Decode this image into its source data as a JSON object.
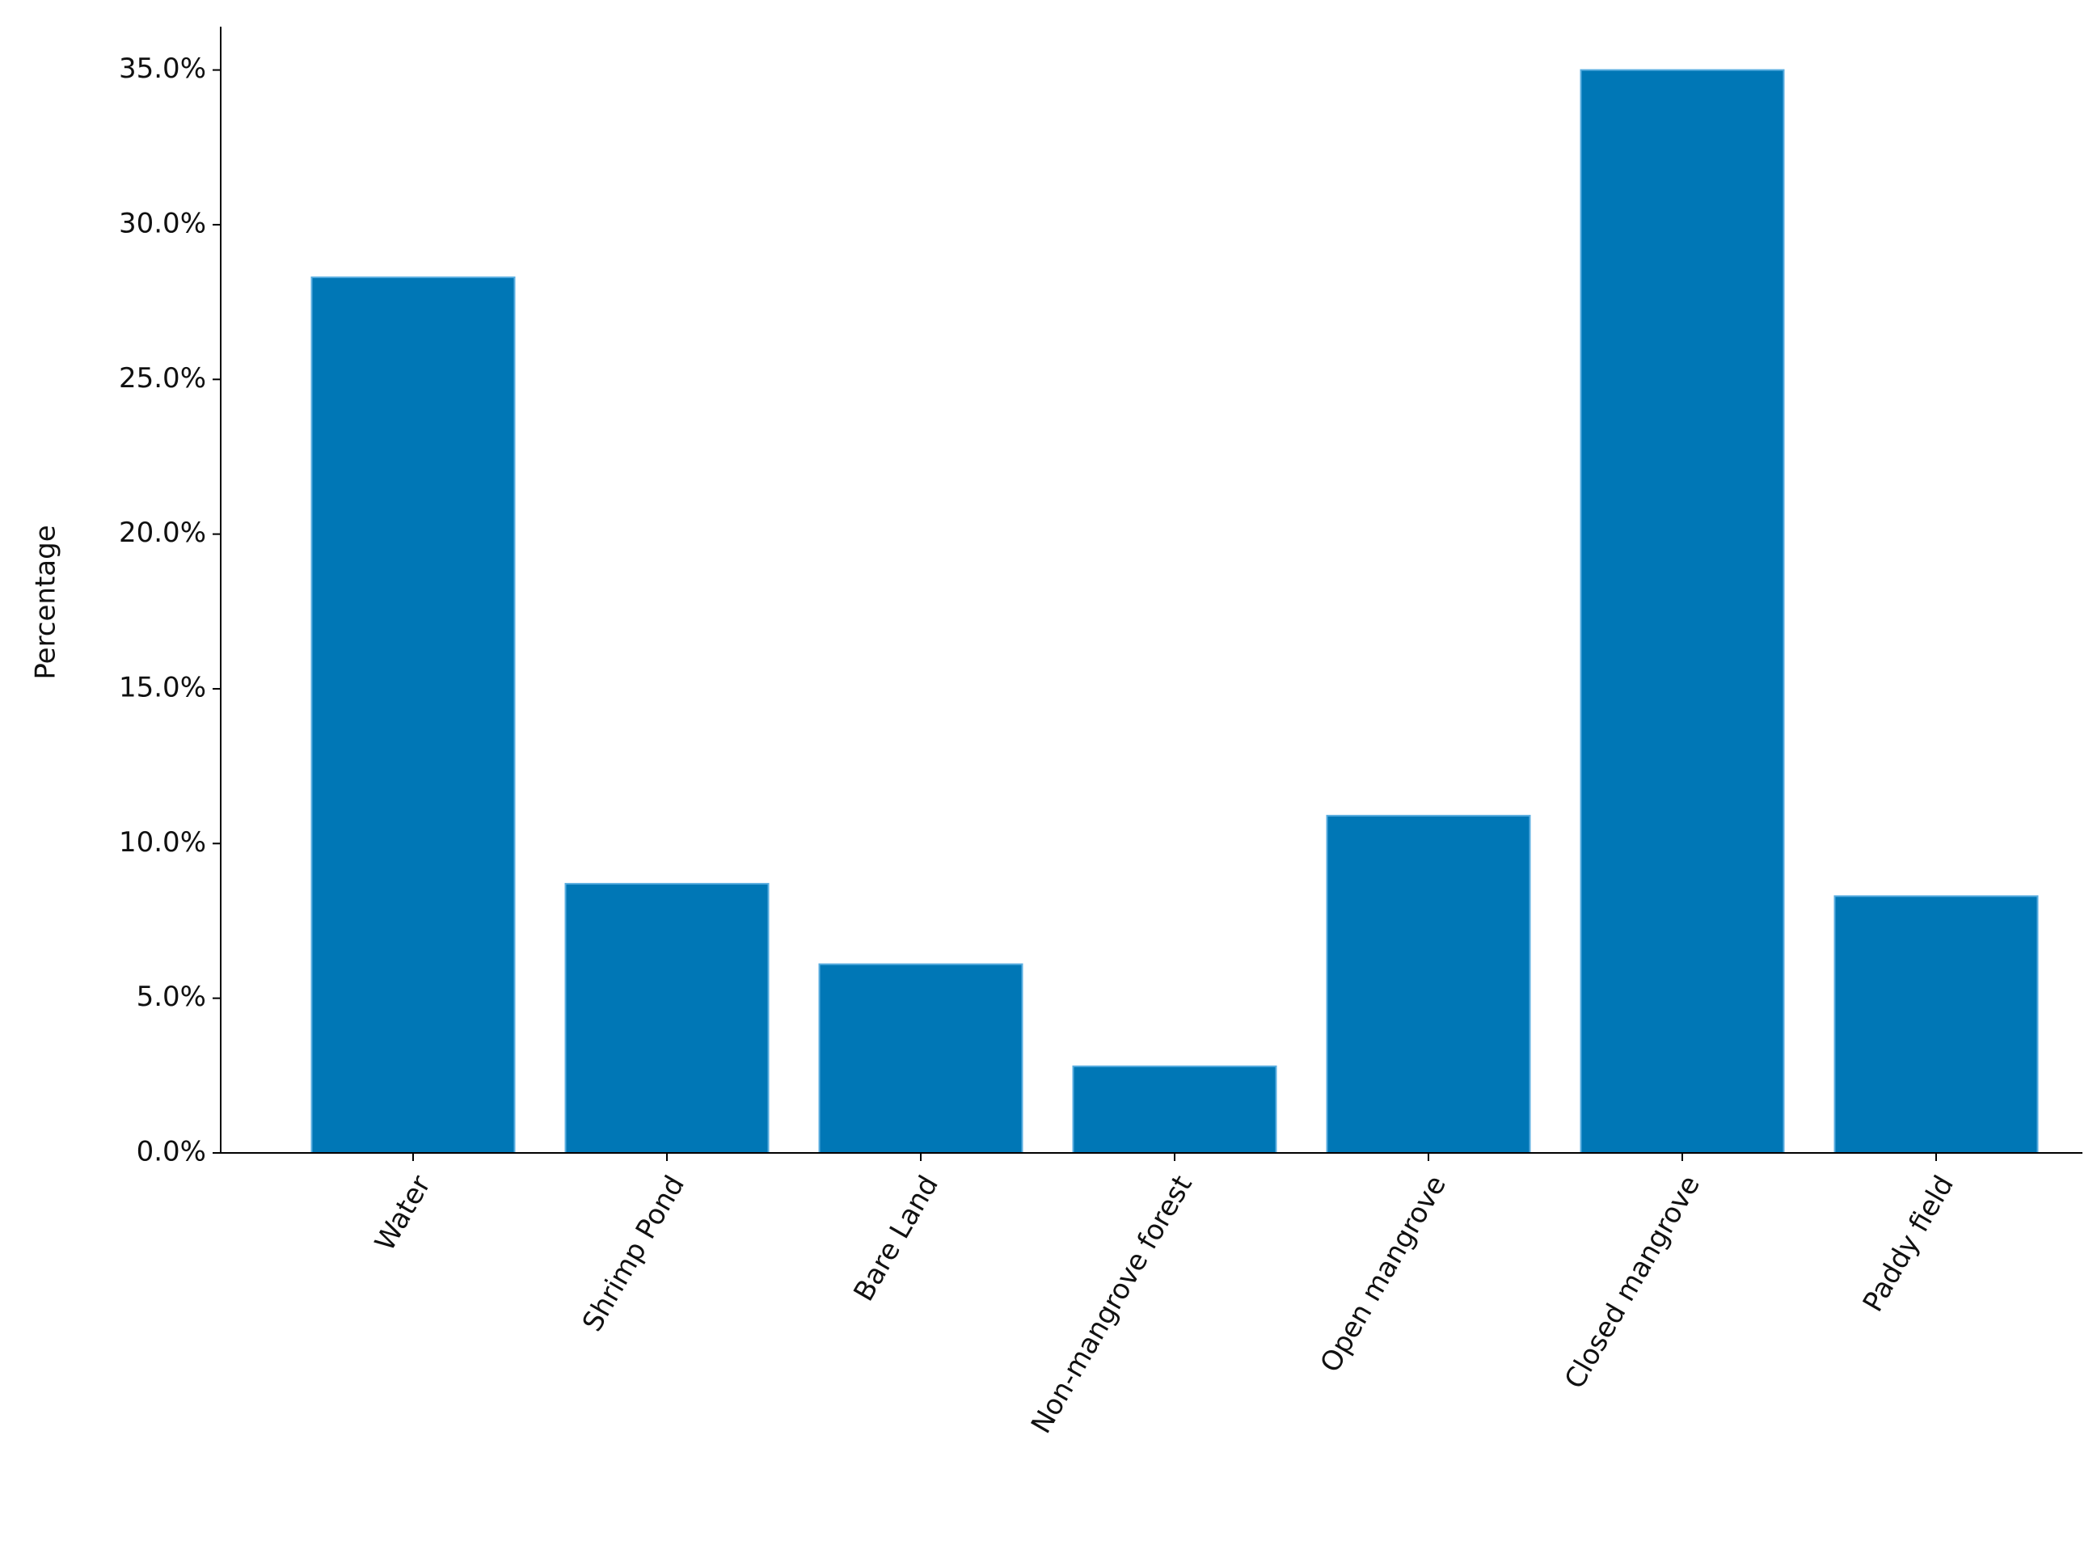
{
  "chart_data": {
    "type": "bar",
    "y_label": "Percentage",
    "categories": [
      "Water",
      "Shrimp Pond",
      "Bare Land",
      "Non-mangrove forest",
      "Open mangrove",
      "Closed mangrove",
      "Paddy field"
    ],
    "values": [
      28.3,
      8.7,
      6.1,
      2.8,
      10.9,
      35.0,
      8.3
    ],
    "color": "#0077b6",
    "ylim": [
      0,
      36.4
    ],
    "yticks": [
      {
        "value": 0,
        "label": "0.0%"
      },
      {
        "value": 5,
        "label": "5.0%"
      },
      {
        "value": 10,
        "label": "10.0%"
      },
      {
        "value": 15,
        "label": "15.0%"
      },
      {
        "value": 20,
        "label": "20.0%"
      },
      {
        "value": 25,
        "label": "25.0%"
      },
      {
        "value": 30,
        "label": "30.0%"
      },
      {
        "value": 35,
        "label": "35.0%"
      }
    ],
    "grid": false
  }
}
